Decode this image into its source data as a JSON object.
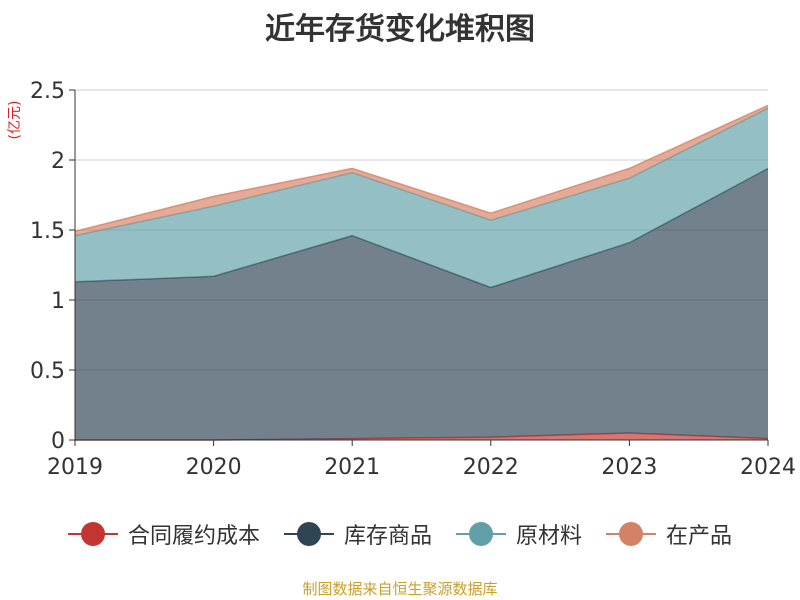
{
  "colors": {
    "contract_cost": "#c23531",
    "goods_in_stock": "#2f4554",
    "raw_materials": "#61a0a8",
    "wip": "#d48265",
    "unit": "#e02020",
    "source": "#c8a02a"
  },
  "chart_data": {
    "type": "area",
    "title": "近年存货变化堆积图",
    "unit_label": "(亿元)",
    "x": [
      "2019",
      "2020",
      "2021",
      "2022",
      "2023",
      "2024"
    ],
    "y_ticks": [
      "0",
      "0.5",
      "1",
      "1.5",
      "2",
      "2.5"
    ],
    "ylim": [
      0,
      2.5
    ],
    "stacked": true,
    "grid": true,
    "legend_position": "bottom",
    "series": [
      {
        "key": "contract_cost",
        "name": "合同履约成本",
        "values": [
          0.0,
          0.0,
          0.01,
          0.02,
          0.05,
          0.01
        ]
      },
      {
        "key": "goods_in_stock",
        "name": "库存商品",
        "values": [
          1.13,
          1.17,
          1.45,
          1.07,
          1.36,
          1.93
        ]
      },
      {
        "key": "raw_materials",
        "name": "原材料",
        "values": [
          0.33,
          0.5,
          0.45,
          0.48,
          0.46,
          0.43
        ]
      },
      {
        "key": "wip",
        "name": "在产品",
        "values": [
          0.03,
          0.07,
          0.03,
          0.05,
          0.07,
          0.02
        ]
      }
    ]
  },
  "footer": {
    "source": "制图数据来自恒生聚源数据库"
  }
}
